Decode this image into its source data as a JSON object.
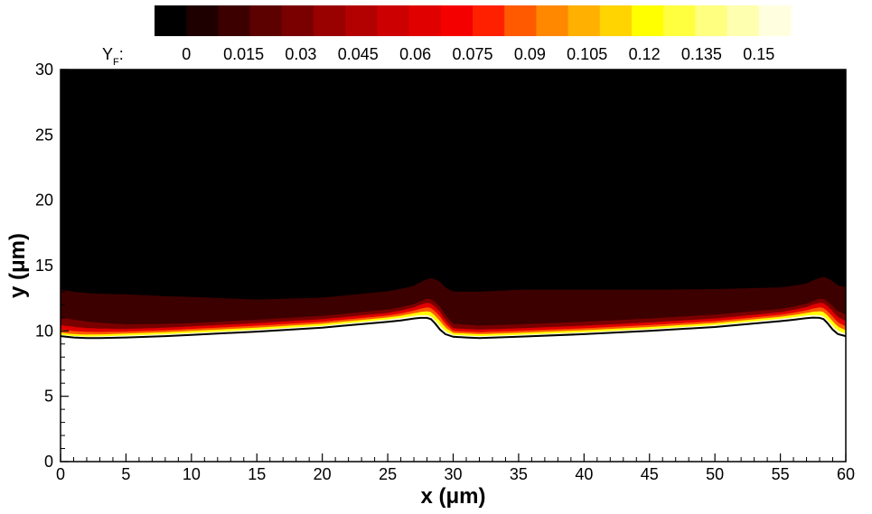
{
  "chart_data": {
    "type": "heatmap",
    "title": "",
    "xlabel": "x (μm)",
    "ylabel": "y (μm)",
    "xlim": [
      0,
      60
    ],
    "ylim": [
      0,
      30
    ],
    "x_ticks": [
      0,
      5,
      10,
      15,
      20,
      25,
      30,
      35,
      40,
      45,
      50,
      55,
      60
    ],
    "y_ticks": [
      0,
      5,
      10,
      15,
      20,
      25,
      30
    ],
    "grid": false,
    "colorbar": {
      "placement": "top",
      "variable": "Y",
      "variable_subscript": "F",
      "label_suffix": ":",
      "levels": [
        0,
        0.015,
        0.03,
        0.045,
        0.06,
        0.075,
        0.09,
        0.105,
        0.12,
        0.135,
        0.15
      ],
      "level_labels": [
        "0",
        "0.015",
        "0.03",
        "0.045",
        "0.06",
        "0.075",
        "0.09",
        "0.105",
        "0.12",
        "0.135",
        "0.15"
      ],
      "colors": [
        "#000000",
        "#1f0000",
        "#3d0000",
        "#5c0000",
        "#7a0000",
        "#990000",
        "#b30000",
        "#cc0000",
        "#e00000",
        "#f50000",
        "#ff2000",
        "#ff5a00",
        "#ff8800",
        "#ffb000",
        "#ffd400",
        "#ffff00",
        "#ffff40",
        "#ffff80",
        "#ffffb0",
        "#ffffe0"
      ]
    },
    "series": [
      {
        "x": [
          0,
          1,
          2,
          3,
          5,
          8,
          10,
          15,
          20,
          25,
          26,
          27,
          27.5,
          28,
          28.3,
          28.6,
          29,
          29.4,
          30,
          31,
          32,
          35,
          40,
          45,
          50,
          55,
          56,
          57,
          57.5,
          58,
          58.3,
          58.6,
          59,
          59.4,
          60
        ],
        "y": [
          9.6,
          9.5,
          9.45,
          9.45,
          9.5,
          9.6,
          9.7,
          9.95,
          10.25,
          10.7,
          10.8,
          10.95,
          11.0,
          11.0,
          10.9,
          10.6,
          10.1,
          9.75,
          9.55,
          9.5,
          9.45,
          9.55,
          9.75,
          10.0,
          10.3,
          10.75,
          10.85,
          10.98,
          11.02,
          11.0,
          10.9,
          10.6,
          10.1,
          9.75,
          9.6
        ]
      }
    ],
    "color_field": {
      "x": [
        0,
        5,
        10,
        15,
        20,
        25,
        27,
        28,
        29,
        30,
        32,
        35,
        40,
        45,
        50,
        55,
        57,
        58,
        59,
        60
      ],
      "bands": [
        {
          "value": 0.15,
          "thickness": [
            0.1,
            0.15,
            0.15,
            0.15,
            0.15,
            0.18,
            0.2,
            0.2,
            0.3,
            0.15,
            0.15,
            0.15,
            0.15,
            0.15,
            0.15,
            0.18,
            0.2,
            0.2,
            0.3,
            0.2
          ]
        },
        {
          "value": 0.12,
          "thickness": [
            0.15,
            0.15,
            0.15,
            0.15,
            0.15,
            0.15,
            0.2,
            0.3,
            0.35,
            0.15,
            0.15,
            0.15,
            0.15,
            0.15,
            0.15,
            0.15,
            0.2,
            0.3,
            0.35,
            0.25
          ]
        },
        {
          "value": 0.09,
          "thickness": [
            0.25,
            0.15,
            0.15,
            0.15,
            0.15,
            0.15,
            0.2,
            0.3,
            0.35,
            0.15,
            0.15,
            0.15,
            0.15,
            0.15,
            0.15,
            0.15,
            0.2,
            0.3,
            0.35,
            0.3
          ]
        },
        {
          "value": 0.06,
          "thickness": [
            0.35,
            0.2,
            0.2,
            0.2,
            0.2,
            0.2,
            0.25,
            0.35,
            0.35,
            0.2,
            0.2,
            0.2,
            0.2,
            0.2,
            0.2,
            0.2,
            0.25,
            0.35,
            0.4,
            0.4
          ]
        },
        {
          "value": 0.03,
          "thickness": [
            0.6,
            0.35,
            0.25,
            0.25,
            0.25,
            0.25,
            0.25,
            0.3,
            0.4,
            0.35,
            0.3,
            0.3,
            0.3,
            0.3,
            0.3,
            0.25,
            0.25,
            0.3,
            0.4,
            0.5
          ]
        },
        {
          "value": 0.015,
          "thickness": [
            2.1,
            2.3,
            2.0,
            1.55,
            1.4,
            1.4,
            1.4,
            1.5,
            1.9,
            2.45,
            2.6,
            2.65,
            2.45,
            2.2,
            1.95,
            1.65,
            1.55,
            1.6,
            1.9,
            2.1
          ]
        }
      ]
    }
  }
}
